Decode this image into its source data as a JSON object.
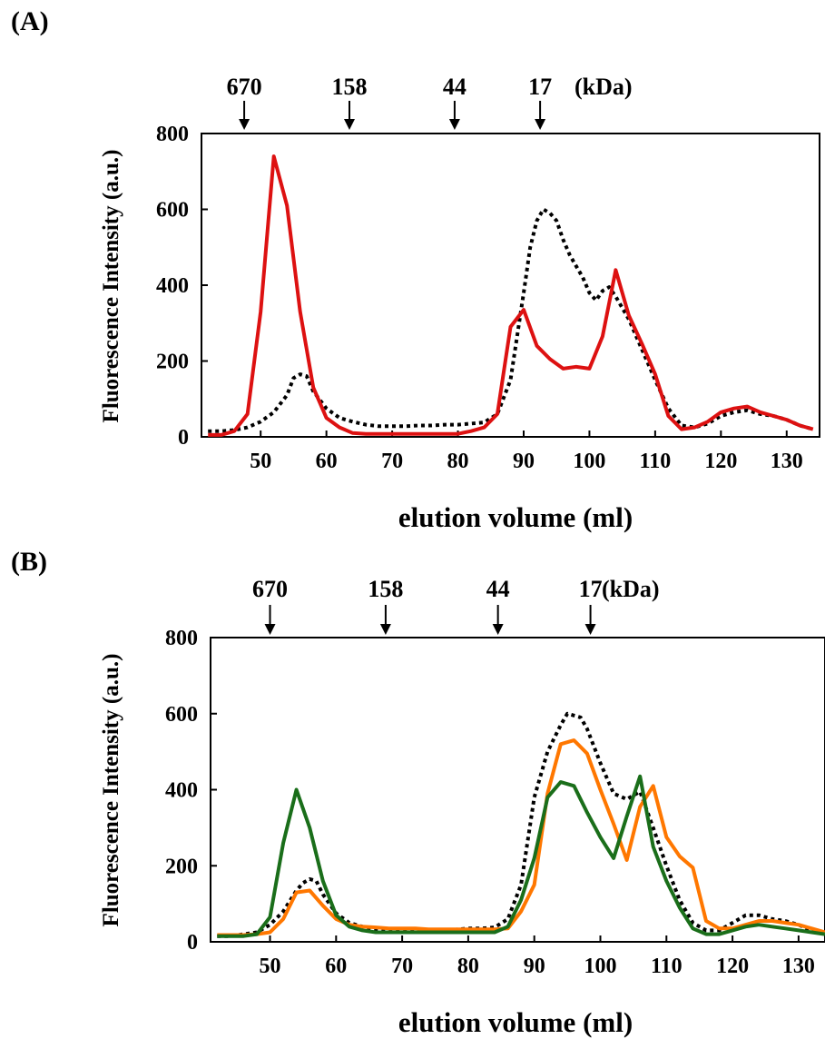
{
  "panels": [
    {
      "label": "(A)",
      "markers": {
        "values": [
          "670",
          "158",
          "44",
          "17"
        ],
        "unit": "(kDa)"
      },
      "ylabel": "Fluorescence Intensity (a.u.)",
      "xlabel": "elution volume (ml)",
      "yticks": [
        "0",
        "200",
        "400",
        "600",
        "800"
      ],
      "xticks": [
        "50",
        "60",
        "70",
        "80",
        "90",
        "100",
        "110",
        "120",
        "130"
      ]
    },
    {
      "label": "(B)",
      "markers": {
        "values": [
          "670",
          "158",
          "44",
          "17"
        ],
        "unit": "(kDa)"
      },
      "ylabel": "Fluorescence Intensity (a.u.)",
      "xlabel": "elution volume (ml)",
      "yticks": [
        "0",
        "200",
        "400",
        "600",
        "800"
      ],
      "xticks": [
        "50",
        "60",
        "70",
        "80",
        "90",
        "100",
        "110",
        "120",
        "130"
      ]
    }
  ],
  "chart_data": [
    {
      "type": "line",
      "title": "(A)",
      "xlabel": "elution volume (ml)",
      "ylabel": "Fluorescence Intensity (a.u.)",
      "xlim": [
        41,
        135
      ],
      "ylim": [
        0,
        800
      ],
      "grid": false,
      "molecular_weight_markers_kDa": [
        {
          "label": "670",
          "x": 47.5
        },
        {
          "label": "158",
          "x": 63.5
        },
        {
          "label": "44",
          "x": 79.5
        },
        {
          "label": "17",
          "x": 92.5
        }
      ],
      "series": [
        {
          "color": "#000000",
          "style": "dotted",
          "points": [
            [
              42,
              15
            ],
            [
              44,
              15
            ],
            [
              46,
              18
            ],
            [
              48,
              25
            ],
            [
              50,
              40
            ],
            [
              52,
              65
            ],
            [
              54,
              110
            ],
            [
              55,
              155
            ],
            [
              56,
              165
            ],
            [
              57,
              160
            ],
            [
              58,
              120
            ],
            [
              60,
              75
            ],
            [
              62,
              50
            ],
            [
              64,
              40
            ],
            [
              66,
              32
            ],
            [
              68,
              28
            ],
            [
              70,
              28
            ],
            [
              72,
              28
            ],
            [
              74,
              30
            ],
            [
              76,
              30
            ],
            [
              78,
              32
            ],
            [
              80,
              32
            ],
            [
              82,
              35
            ],
            [
              84,
              38
            ],
            [
              86,
              60
            ],
            [
              88,
              150
            ],
            [
              90,
              380
            ],
            [
              91,
              500
            ],
            [
              92,
              570
            ],
            [
              93,
              600
            ],
            [
              94,
              590
            ],
            [
              95,
              570
            ],
            [
              96,
              520
            ],
            [
              97,
              480
            ],
            [
              98,
              450
            ],
            [
              99,
              420
            ],
            [
              100,
              380
            ],
            [
              101,
              360
            ],
            [
              102,
              385
            ],
            [
              103,
              395
            ],
            [
              104,
              370
            ],
            [
              106,
              310
            ],
            [
              108,
              230
            ],
            [
              110,
              150
            ],
            [
              112,
              75
            ],
            [
              114,
              30
            ],
            [
              116,
              25
            ],
            [
              118,
              35
            ],
            [
              120,
              55
            ],
            [
              122,
              65
            ],
            [
              124,
              70
            ],
            [
              126,
              60
            ],
            [
              128,
              55
            ],
            [
              130,
              45
            ],
            [
              132,
              30
            ],
            [
              134,
              20
            ]
          ]
        },
        {
          "color": "#dd1111",
          "style": "solid",
          "points": [
            [
              42,
              5
            ],
            [
              44,
              5
            ],
            [
              46,
              15
            ],
            [
              48,
              60
            ],
            [
              50,
              330
            ],
            [
              52,
              740
            ],
            [
              54,
              610
            ],
            [
              56,
              330
            ],
            [
              58,
              130
            ],
            [
              60,
              50
            ],
            [
              62,
              25
            ],
            [
              64,
              10
            ],
            [
              66,
              8
            ],
            [
              68,
              8
            ],
            [
              70,
              8
            ],
            [
              72,
              8
            ],
            [
              74,
              8
            ],
            [
              76,
              8
            ],
            [
              78,
              8
            ],
            [
              80,
              8
            ],
            [
              82,
              15
            ],
            [
              84,
              25
            ],
            [
              86,
              60
            ],
            [
              88,
              290
            ],
            [
              90,
              335
            ],
            [
              92,
              240
            ],
            [
              94,
              205
            ],
            [
              96,
              180
            ],
            [
              98,
              185
            ],
            [
              100,
              180
            ],
            [
              102,
              265
            ],
            [
              104,
              440
            ],
            [
              106,
              320
            ],
            [
              108,
              245
            ],
            [
              110,
              165
            ],
            [
              112,
              55
            ],
            [
              114,
              20
            ],
            [
              116,
              25
            ],
            [
              118,
              40
            ],
            [
              120,
              65
            ],
            [
              122,
              75
            ],
            [
              124,
              80
            ],
            [
              126,
              65
            ],
            [
              128,
              55
            ],
            [
              130,
              45
            ],
            [
              132,
              30
            ],
            [
              134,
              20
            ]
          ]
        }
      ]
    },
    {
      "type": "line",
      "title": "(B)",
      "xlabel": "elution volume (ml)",
      "ylabel": "Fluorescence Intensity (a.u.)",
      "xlim": [
        41,
        134
      ],
      "ylim": [
        0,
        800
      ],
      "grid": false,
      "molecular_weight_markers_kDa": [
        {
          "label": "670",
          "x": 50
        },
        {
          "label": "158",
          "x": 67.5
        },
        {
          "label": "44",
          "x": 84.5
        },
        {
          "label": "17",
          "x": 98.5
        }
      ],
      "series": [
        {
          "color": "#000000",
          "style": "dotted",
          "points": [
            [
              42,
              15
            ],
            [
              44,
              15
            ],
            [
              46,
              20
            ],
            [
              48,
              25
            ],
            [
              50,
              45
            ],
            [
              52,
              80
            ],
            [
              54,
              135
            ],
            [
              55,
              155
            ],
            [
              56,
              165
            ],
            [
              57,
              160
            ],
            [
              58,
              125
            ],
            [
              60,
              75
            ],
            [
              62,
              50
            ],
            [
              64,
              40
            ],
            [
              66,
              32
            ],
            [
              68,
              28
            ],
            [
              70,
              28
            ],
            [
              72,
              28
            ],
            [
              74,
              30
            ],
            [
              76,
              30
            ],
            [
              78,
              32
            ],
            [
              80,
              35
            ],
            [
              82,
              35
            ],
            [
              84,
              38
            ],
            [
              86,
              60
            ],
            [
              88,
              150
            ],
            [
              90,
              380
            ],
            [
              92,
              500
            ],
            [
              94,
              570
            ],
            [
              95,
              600
            ],
            [
              96,
              595
            ],
            [
              97,
              590
            ],
            [
              98,
              560
            ],
            [
              100,
              470
            ],
            [
              102,
              390
            ],
            [
              104,
              375
            ],
            [
              106,
              395
            ],
            [
              108,
              300
            ],
            [
              110,
              200
            ],
            [
              112,
              110
            ],
            [
              114,
              50
            ],
            [
              116,
              30
            ],
            [
              118,
              30
            ],
            [
              120,
              50
            ],
            [
              122,
              70
            ],
            [
              124,
              70
            ],
            [
              126,
              60
            ],
            [
              128,
              55
            ],
            [
              130,
              45
            ],
            [
              132,
              30
            ],
            [
              134,
              20
            ]
          ]
        },
        {
          "color": "#ff7700",
          "style": "solid",
          "points": [
            [
              42,
              18
            ],
            [
              44,
              18
            ],
            [
              46,
              18
            ],
            [
              48,
              20
            ],
            [
              50,
              25
            ],
            [
              52,
              60
            ],
            [
              54,
              130
            ],
            [
              56,
              135
            ],
            [
              58,
              95
            ],
            [
              60,
              60
            ],
            [
              62,
              45
            ],
            [
              64,
              40
            ],
            [
              66,
              38
            ],
            [
              68,
              35
            ],
            [
              70,
              35
            ],
            [
              72,
              35
            ],
            [
              74,
              33
            ],
            [
              76,
              33
            ],
            [
              78,
              33
            ],
            [
              80,
              33
            ],
            [
              82,
              33
            ],
            [
              84,
              33
            ],
            [
              86,
              35
            ],
            [
              88,
              80
            ],
            [
              90,
              150
            ],
            [
              92,
              390
            ],
            [
              94,
              520
            ],
            [
              96,
              530
            ],
            [
              98,
              495
            ],
            [
              100,
              400
            ],
            [
              102,
              310
            ],
            [
              104,
              215
            ],
            [
              106,
              355
            ],
            [
              108,
              410
            ],
            [
              110,
              275
            ],
            [
              112,
              225
            ],
            [
              114,
              195
            ],
            [
              116,
              55
            ],
            [
              118,
              35
            ],
            [
              120,
              35
            ],
            [
              122,
              45
            ],
            [
              124,
              55
            ],
            [
              126,
              55
            ],
            [
              128,
              50
            ],
            [
              130,
              45
            ],
            [
              132,
              35
            ],
            [
              134,
              25
            ]
          ]
        },
        {
          "color": "#1a6e1a",
          "style": "solid",
          "points": [
            [
              42,
              15
            ],
            [
              44,
              15
            ],
            [
              46,
              15
            ],
            [
              48,
              20
            ],
            [
              50,
              65
            ],
            [
              52,
              260
            ],
            [
              54,
              400
            ],
            [
              56,
              300
            ],
            [
              58,
              160
            ],
            [
              60,
              70
            ],
            [
              62,
              40
            ],
            [
              64,
              30
            ],
            [
              66,
              25
            ],
            [
              68,
              25
            ],
            [
              70,
              25
            ],
            [
              72,
              25
            ],
            [
              74,
              25
            ],
            [
              76,
              25
            ],
            [
              78,
              25
            ],
            [
              80,
              25
            ],
            [
              82,
              25
            ],
            [
              84,
              25
            ],
            [
              86,
              40
            ],
            [
              88,
              110
            ],
            [
              90,
              220
            ],
            [
              92,
              380
            ],
            [
              94,
              420
            ],
            [
              96,
              410
            ],
            [
              98,
              340
            ],
            [
              100,
              275
            ],
            [
              102,
              220
            ],
            [
              104,
              330
            ],
            [
              106,
              435
            ],
            [
              108,
              250
            ],
            [
              110,
              160
            ],
            [
              112,
              90
            ],
            [
              114,
              35
            ],
            [
              116,
              20
            ],
            [
              118,
              20
            ],
            [
              120,
              30
            ],
            [
              122,
              40
            ],
            [
              124,
              45
            ],
            [
              126,
              40
            ],
            [
              128,
              35
            ],
            [
              130,
              30
            ],
            [
              132,
              25
            ],
            [
              134,
              20
            ]
          ]
        }
      ]
    }
  ]
}
